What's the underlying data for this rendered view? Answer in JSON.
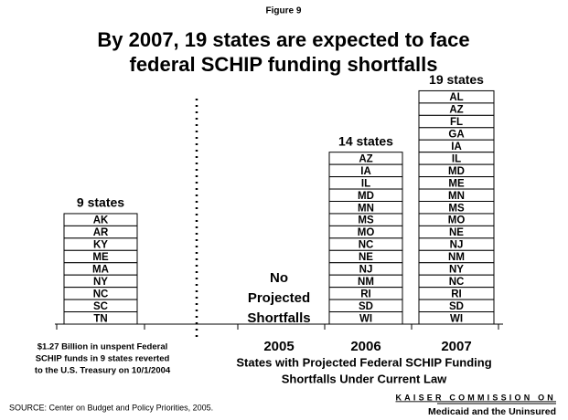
{
  "figure_label": "Figure 9",
  "title": [
    "By 2007, 19 states are expected to face",
    "federal SCHIP funding shortfalls"
  ],
  "reverted": {
    "label": "9 states",
    "states": [
      "AK",
      "AR",
      "KY",
      "ME",
      "MA",
      "NY",
      "NC",
      "SC",
      "TN"
    ],
    "note": [
      "$1.27 Billion in unspent Federal",
      "SCHIP funds in 9 states reverted",
      "to the U.S. Treasury on 10/1/2004"
    ]
  },
  "years": [
    {
      "year": "2005",
      "note": [
        "No",
        "Projected",
        "Shortfalls"
      ]
    },
    {
      "year": "2006",
      "label": "14 states",
      "states": [
        "AZ",
        "IA",
        "IL",
        "MD",
        "MN",
        "MS",
        "MO",
        "NC",
        "NE",
        "NJ",
        "NM",
        "RI",
        "SD",
        "WI"
      ]
    },
    {
      "year": "2007",
      "label": "19 states",
      "states": [
        "AL",
        "AZ",
        "FL",
        "GA",
        "IA",
        "IL",
        "MD",
        "ME",
        "MN",
        "MS",
        "MO",
        "NE",
        "NJ",
        "NM",
        "NY",
        "NC",
        "RI",
        "SD",
        "WI"
      ]
    }
  ],
  "x_caption": [
    "States with Projected Federal SCHIP Funding",
    "Shortfalls Under Current Law"
  ],
  "source": "SOURCE: Center on Budget and Policy Priorities, 2005.",
  "logo": {
    "line1": "KAISER COMMISSION ON",
    "line2": "Medicaid and the Uninsured"
  }
}
